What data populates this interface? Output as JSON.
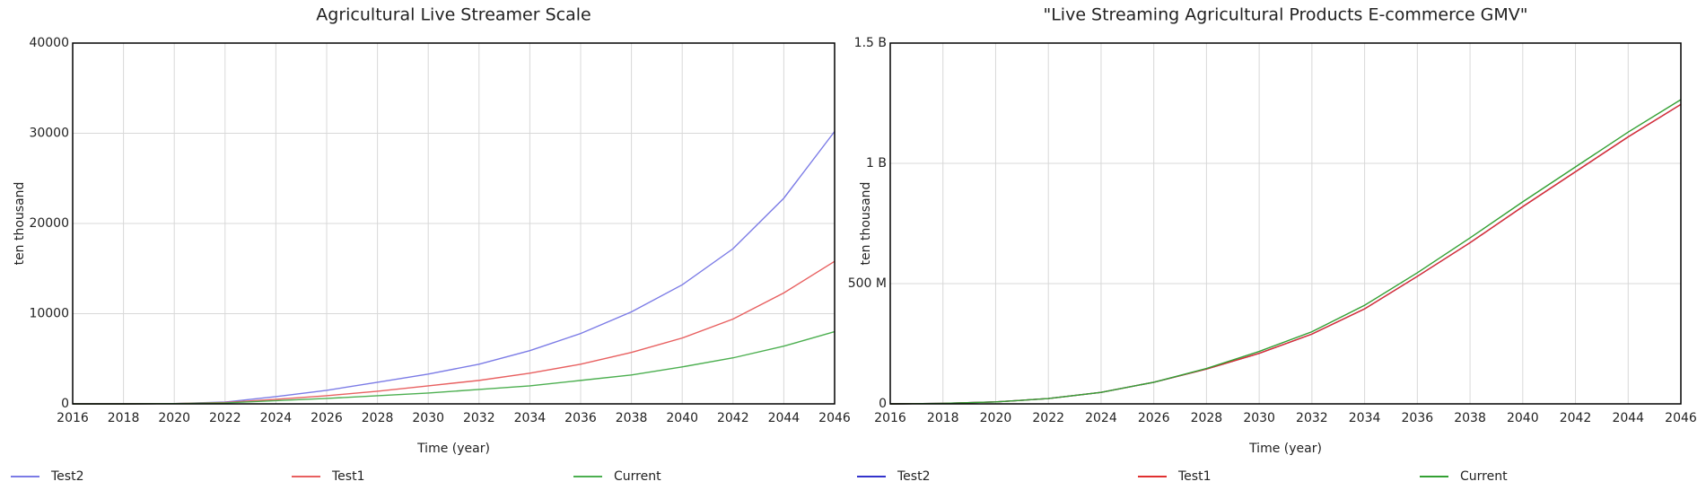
{
  "chart_data": [
    {
      "type": "line",
      "title": "Agricultural Live Streamer Scale",
      "x_label": "Time (year)",
      "y_label": "ten thousand",
      "x": [
        2016,
        2018,
        2020,
        2022,
        2024,
        2026,
        2028,
        2030,
        2032,
        2034,
        2036,
        2038,
        2040,
        2042,
        2044,
        2046
      ],
      "xlim": [
        2016,
        2046
      ],
      "xticks": [
        2016,
        2018,
        2020,
        2022,
        2024,
        2026,
        2028,
        2030,
        2032,
        2034,
        2036,
        2038,
        2040,
        2042,
        2044,
        2046
      ],
      "ylim": [
        0,
        40000
      ],
      "yticks": [
        0,
        10000,
        20000,
        30000,
        40000
      ],
      "grid": true,
      "series": [
        {
          "name": "Test2",
          "color": "#7b7be6",
          "values": [
            0,
            0,
            30,
            200,
            800,
            1500,
            2400,
            3300,
            4400,
            5900,
            7800,
            10200,
            13200,
            17200,
            22800,
            30200
          ]
        },
        {
          "name": "Test1",
          "color": "#e86060",
          "values": [
            0,
            0,
            30,
            150,
            500,
            900,
            1400,
            2000,
            2600,
            3400,
            4400,
            5700,
            7300,
            9400,
            12300,
            15800
          ]
        },
        {
          "name": "Current",
          "color": "#4caf50",
          "values": [
            0,
            0,
            30,
            100,
            350,
            600,
            900,
            1200,
            1600,
            2000,
            2600,
            3200,
            4100,
            5100,
            6400,
            8000
          ]
        }
      ]
    },
    {
      "type": "line",
      "title": "\"Live Streaming Agricultural Products E-commerce GMV\"",
      "x_label": "Time (year)",
      "y_label": "ten thousand",
      "x": [
        2016,
        2018,
        2020,
        2022,
        2024,
        2026,
        2028,
        2030,
        2032,
        2034,
        2036,
        2038,
        2040,
        2042,
        2044,
        2046
      ],
      "xlim": [
        2016,
        2046
      ],
      "xticks": [
        2016,
        2018,
        2020,
        2022,
        2024,
        2026,
        2028,
        2030,
        2032,
        2034,
        2036,
        2038,
        2040,
        2042,
        2044,
        2046
      ],
      "ylim": [
        0,
        1500000000
      ],
      "yticks": [
        0,
        {
          "value": 500000000,
          "label": "500 M"
        },
        {
          "value": 1000000000,
          "label": "1 B"
        },
        {
          "value": 1500000000,
          "label": "1.5 B"
        }
      ],
      "grid": true,
      "series": [
        {
          "name": "Test2",
          "color": "#3333cc",
          "values": [
            0,
            2000000,
            8000000,
            22000000,
            48000000,
            90000000,
            145000000,
            210000000,
            290000000,
            395000000,
            530000000,
            670000000,
            820000000,
            965000000,
            1110000000,
            1245000000
          ]
        },
        {
          "name": "Test1",
          "color": "#e03030",
          "values": [
            0,
            2000000,
            8000000,
            22000000,
            48000000,
            90000000,
            145000000,
            210000000,
            290000000,
            395000000,
            530000000,
            670000000,
            820000000,
            965000000,
            1110000000,
            1245000000
          ]
        },
        {
          "name": "Current",
          "color": "#33a033",
          "values": [
            0,
            2000000,
            8000000,
            22000000,
            48000000,
            90000000,
            147000000,
            218000000,
            300000000,
            410000000,
            545000000,
            690000000,
            840000000,
            985000000,
            1130000000,
            1265000000
          ]
        }
      ]
    }
  ]
}
